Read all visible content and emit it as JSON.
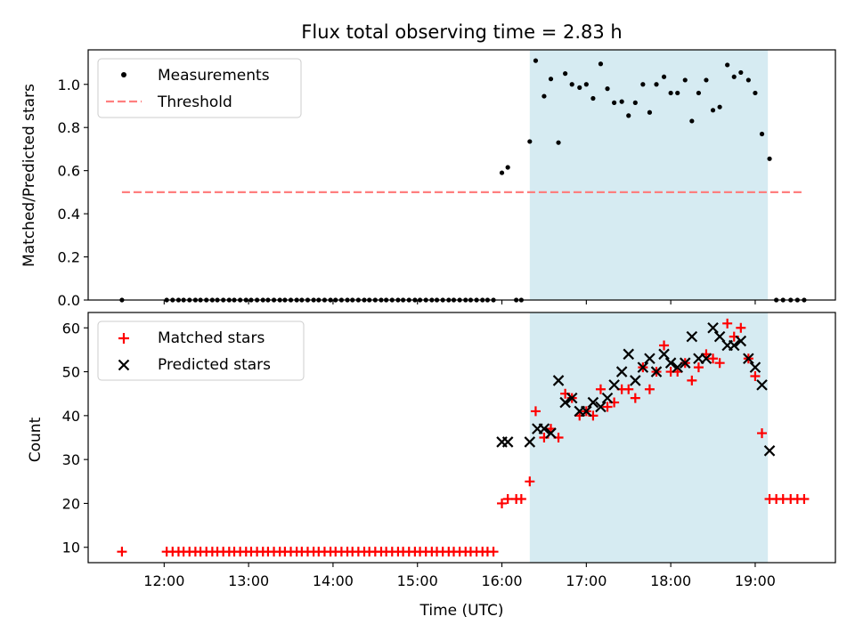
{
  "title": "Flux total observing time = 2.83 h",
  "xlabel": "Time (UTC)",
  "colors": {
    "measurements": "#000000",
    "threshold": "#ff7f7f",
    "matched": "#ff0000",
    "predicted": "#000000",
    "span_fill": "#add8e6"
  },
  "chart_data": [
    {
      "type": "scatter",
      "panel": "top",
      "ylabel": "Matched/Predicted stars",
      "xlim": [
        11.1,
        19.95
      ],
      "ylim": [
        0,
        1.16
      ],
      "yticks": [
        0.0,
        0.2,
        0.4,
        0.6,
        0.8,
        1.0
      ],
      "ytick_labels": [
        "0.0",
        "0.2",
        "0.4",
        "0.6",
        "0.8",
        "1.0"
      ],
      "legend": {
        "placement": "upper left",
        "entries": [
          "Measurements",
          "Threshold"
        ]
      },
      "shaded_span": {
        "x0": 16.33,
        "x1": 19.15
      },
      "threshold": {
        "name": "Threshold",
        "y": 0.5,
        "x0": 11.5,
        "x1": 19.58
      },
      "series": [
        {
          "name": "Measurements",
          "marker": "dot",
          "x": [
            11.5,
            12.03,
            12.1,
            12.17,
            12.23,
            12.3,
            12.37,
            12.43,
            12.5,
            12.57,
            12.63,
            12.7,
            12.77,
            12.83,
            12.9,
            12.97,
            13.03,
            13.1,
            13.17,
            13.23,
            13.3,
            13.37,
            13.43,
            13.5,
            13.57,
            13.63,
            13.7,
            13.77,
            13.83,
            13.9,
            13.97,
            14.03,
            14.1,
            14.17,
            14.23,
            14.3,
            14.37,
            14.43,
            14.5,
            14.57,
            14.63,
            14.7,
            14.77,
            14.83,
            14.9,
            14.97,
            15.03,
            15.1,
            15.17,
            15.23,
            15.3,
            15.37,
            15.43,
            15.5,
            15.57,
            15.63,
            15.7,
            15.77,
            15.83,
            15.9,
            16.0,
            16.07,
            16.17,
            16.23,
            16.33,
            16.4,
            16.5,
            16.58,
            16.67,
            16.75,
            16.83,
            16.92,
            17.0,
            17.08,
            17.17,
            17.25,
            17.33,
            17.42,
            17.5,
            17.58,
            17.67,
            17.75,
            17.83,
            17.92,
            18.0,
            18.08,
            18.17,
            18.25,
            18.33,
            18.42,
            18.5,
            18.58,
            18.67,
            18.75,
            18.83,
            18.92,
            19.0,
            19.08,
            19.17,
            19.25,
            19.33,
            19.42,
            19.5,
            19.58
          ],
          "y": [
            0,
            0,
            0,
            0,
            0,
            0,
            0,
            0,
            0,
            0,
            0,
            0,
            0,
            0,
            0,
            0,
            0,
            0,
            0,
            0,
            0,
            0,
            0,
            0,
            0,
            0,
            0,
            0,
            0,
            0,
            0,
            0,
            0,
            0,
            0,
            0,
            0,
            0,
            0,
            0,
            0,
            0,
            0,
            0,
            0,
            0,
            0,
            0,
            0,
            0,
            0,
            0,
            0,
            0,
            0,
            0,
            0,
            0,
            0,
            0,
            0.59,
            0.615,
            0,
            0,
            0.735,
            1.11,
            0.945,
            1.025,
            0.73,
            1.05,
            1.0,
            0.985,
            1.0,
            0.935,
            1.095,
            0.98,
            0.915,
            0.92,
            0.855,
            0.915,
            1.0,
            0.87,
            1.0,
            1.035,
            0.96,
            0.96,
            1.02,
            0.83,
            0.96,
            1.02,
            0.88,
            0.895,
            1.09,
            1.035,
            1.055,
            1.02,
            0.96,
            0.77,
            0.655,
            0,
            0,
            0,
            0,
            0
          ]
        }
      ]
    },
    {
      "type": "scatter",
      "panel": "bottom",
      "ylabel": "Count",
      "xlim": [
        11.1,
        19.95
      ],
      "ylim": [
        6.5,
        63.5
      ],
      "yticks": [
        10,
        20,
        30,
        40,
        50,
        60
      ],
      "ytick_labels": [
        "10",
        "20",
        "30",
        "40",
        "50",
        "60"
      ],
      "xticks": [
        12,
        13,
        14,
        15,
        16,
        17,
        18,
        19
      ],
      "xtick_labels": [
        "12:00",
        "13:00",
        "14:00",
        "15:00",
        "16:00",
        "17:00",
        "18:00",
        "19:00"
      ],
      "legend": {
        "placement": "upper left",
        "entries": [
          "Matched stars",
          "Predicted stars"
        ]
      },
      "shaded_span": {
        "x0": 16.33,
        "x1": 19.15
      },
      "series": [
        {
          "name": "Matched stars",
          "marker": "plus",
          "x": [
            11.5,
            12.03,
            12.1,
            12.17,
            12.23,
            12.3,
            12.37,
            12.43,
            12.5,
            12.57,
            12.63,
            12.7,
            12.77,
            12.83,
            12.9,
            12.97,
            13.03,
            13.1,
            13.17,
            13.23,
            13.3,
            13.37,
            13.43,
            13.5,
            13.57,
            13.63,
            13.7,
            13.77,
            13.83,
            13.9,
            13.97,
            14.03,
            14.1,
            14.17,
            14.23,
            14.3,
            14.37,
            14.43,
            14.5,
            14.57,
            14.63,
            14.7,
            14.77,
            14.83,
            14.9,
            14.97,
            15.03,
            15.1,
            15.17,
            15.23,
            15.3,
            15.37,
            15.43,
            15.5,
            15.57,
            15.63,
            15.7,
            15.77,
            15.83,
            15.9,
            16.0,
            16.07,
            16.17,
            16.23,
            16.33,
            16.4,
            16.5,
            16.58,
            16.67,
            16.75,
            16.83,
            16.92,
            17.0,
            17.08,
            17.17,
            17.25,
            17.33,
            17.42,
            17.5,
            17.58,
            17.67,
            17.75,
            17.83,
            17.92,
            18.0,
            18.08,
            18.17,
            18.25,
            18.33,
            18.42,
            18.5,
            18.58,
            18.67,
            18.75,
            18.83,
            18.92,
            19.0,
            19.08,
            19.17,
            19.25,
            19.33,
            19.42,
            19.5,
            19.58
          ],
          "y": [
            9,
            9,
            9,
            9,
            9,
            9,
            9,
            9,
            9,
            9,
            9,
            9,
            9,
            9,
            9,
            9,
            9,
            9,
            9,
            9,
            9,
            9,
            9,
            9,
            9,
            9,
            9,
            9,
            9,
            9,
            9,
            9,
            9,
            9,
            9,
            9,
            9,
            9,
            9,
            9,
            9,
            9,
            9,
            9,
            9,
            9,
            9,
            9,
            9,
            9,
            9,
            9,
            9,
            9,
            9,
            9,
            9,
            9,
            9,
            9,
            20,
            21,
            21,
            21,
            25,
            41,
            35,
            37,
            35,
            45,
            44,
            40,
            41,
            40,
            46,
            42,
            43,
            46,
            46,
            44,
            51,
            46,
            50,
            56,
            50,
            50,
            52,
            48,
            51,
            54,
            53,
            52,
            61,
            58,
            60,
            53,
            49,
            36,
            21,
            21,
            21,
            21,
            21,
            21
          ]
        },
        {
          "name": "Predicted stars",
          "marker": "x",
          "x": [
            16.0,
            16.07,
            16.33,
            16.42,
            16.5,
            16.58,
            16.67,
            16.75,
            16.83,
            16.92,
            17.0,
            17.08,
            17.17,
            17.25,
            17.33,
            17.42,
            17.5,
            17.58,
            17.67,
            17.75,
            17.83,
            17.92,
            18.0,
            18.08,
            18.17,
            18.25,
            18.33,
            18.42,
            18.5,
            18.58,
            18.67,
            18.75,
            18.83,
            18.92,
            19.0,
            19.08,
            19.17
          ],
          "y": [
            34,
            34,
            34,
            37,
            37,
            36,
            48,
            43,
            44,
            41,
            41,
            43,
            42,
            44,
            47,
            50,
            54,
            48,
            51,
            53,
            50,
            54,
            52,
            51,
            52,
            58,
            53,
            53,
            60,
            58,
            56,
            56,
            57,
            53,
            51,
            47,
            32
          ]
        }
      ]
    }
  ]
}
